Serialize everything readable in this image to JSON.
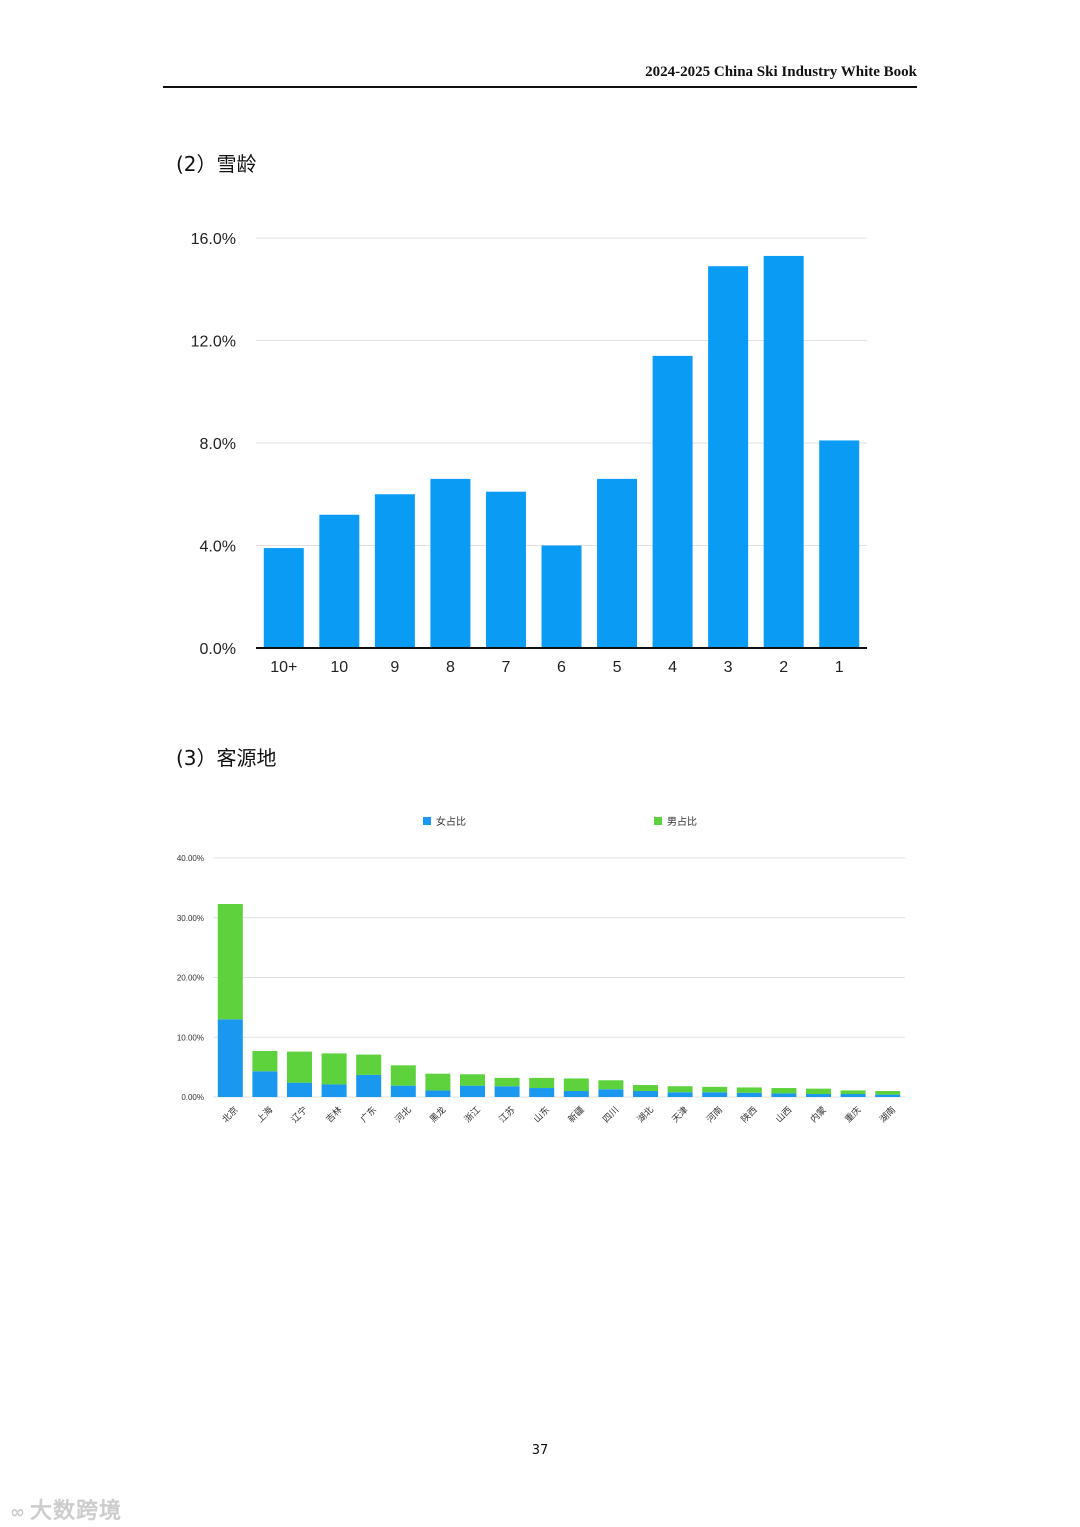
{
  "header": {
    "title": "2024-2025 China Ski Industry White Book"
  },
  "sections": [
    {
      "title": "(2）雪龄"
    },
    {
      "title": "(3）客源地"
    }
  ],
  "page_number": "37",
  "watermark": {
    "text": "大数跨境",
    "icon": "ribbon-logo-icon"
  },
  "colors": {
    "chart1_bar": "#0a9cf4",
    "female": "#1a98f0",
    "male": "#5ed23c",
    "grid": "#e0e0e0"
  },
  "chart_data": [
    {
      "type": "bar",
      "title": "",
      "xlabel": "",
      "ylabel": "",
      "categories": [
        "10+",
        "10",
        "9",
        "8",
        "7",
        "6",
        "5",
        "4",
        "3",
        "2",
        "1"
      ],
      "values": [
        3.9,
        5.2,
        6.0,
        6.6,
        6.1,
        4.0,
        6.6,
        11.4,
        14.9,
        15.3,
        8.1
      ],
      "ylim": [
        0,
        16
      ],
      "yticks": [
        "0.0%",
        "4.0%",
        "8.0%",
        "12.0%",
        "16.0%"
      ],
      "ytick_values": [
        0,
        4,
        8,
        12,
        16
      ],
      "grid": true,
      "legend": "none"
    },
    {
      "type": "bar",
      "stacked": true,
      "title": "",
      "xlabel": "",
      "ylabel": "",
      "categories": [
        "北京",
        "上海",
        "辽宁",
        "吉林",
        "广东",
        "河北",
        "黑龙",
        "浙江",
        "江苏",
        "山东",
        "新疆",
        "四川",
        "湖北",
        "天津",
        "河南",
        "陕西",
        "山西",
        "内蒙",
        "重庆",
        "湖南"
      ],
      "series": [
        {
          "name": "女占比",
          "values": [
            13.0,
            4.3,
            2.4,
            2.1,
            3.7,
            1.9,
            1.1,
            1.9,
            1.8,
            1.5,
            1.0,
            1.3,
            1.0,
            0.8,
            0.8,
            0.7,
            0.6,
            0.5,
            0.5,
            0.4
          ]
        },
        {
          "name": "男占比",
          "values": [
            19.3,
            3.4,
            5.2,
            5.2,
            3.4,
            3.4,
            2.8,
            1.9,
            1.4,
            1.7,
            2.1,
            1.5,
            1.0,
            1.0,
            0.9,
            0.9,
            0.9,
            0.9,
            0.6,
            0.6
          ]
        }
      ],
      "ylim": [
        0,
        40
      ],
      "yticks": [
        "0.00%",
        "10.00%",
        "20.00%",
        "30.00%",
        "40.00%"
      ],
      "ytick_values": [
        0,
        10,
        20,
        30,
        40
      ],
      "grid": true,
      "legend": "top"
    }
  ]
}
